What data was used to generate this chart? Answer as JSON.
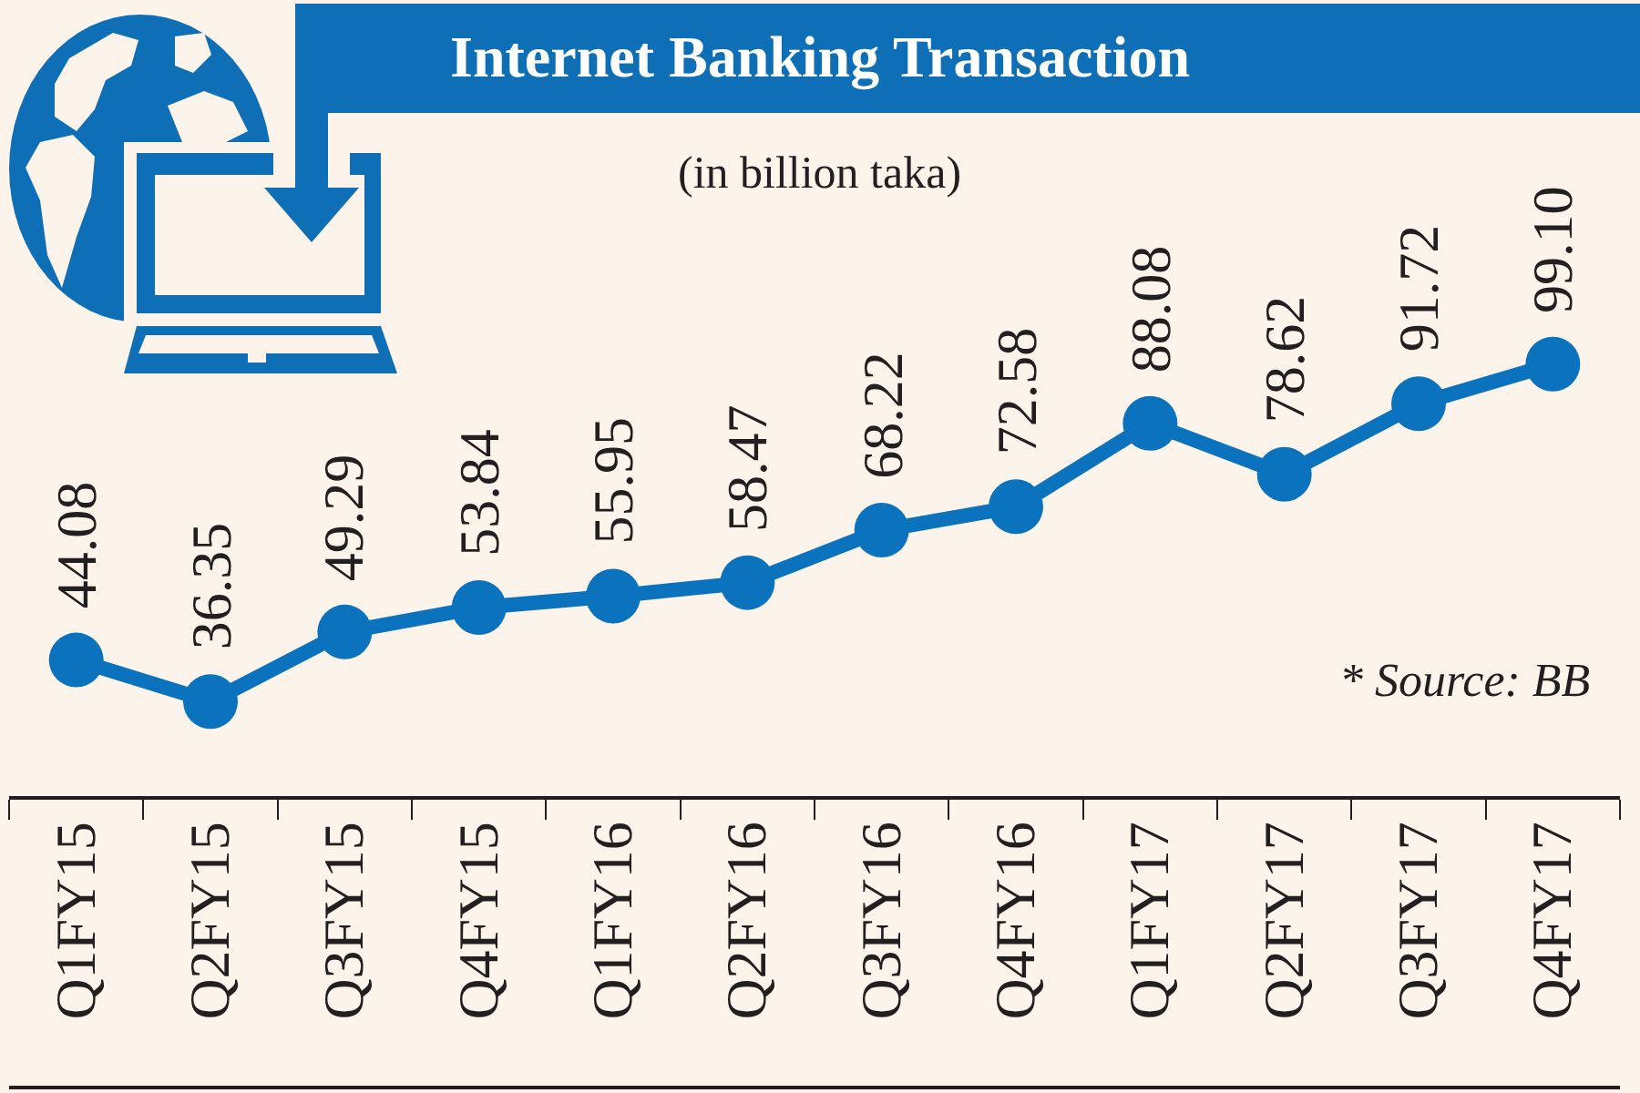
{
  "chart_data": {
    "type": "line",
    "title": "Internet Banking Transaction",
    "subtitle": "(in billion taka)",
    "annotations": [
      "* Source: BB"
    ],
    "categories": [
      "Q1FY15",
      "Q2FY15",
      "Q3FY15",
      "Q4FY15",
      "Q1FY16",
      "Q2FY16",
      "Q3FY16",
      "Q4FY16",
      "Q1FY17",
      "Q2FY17",
      "Q3FY17",
      "Q4FY17"
    ],
    "values": [
      44.08,
      36.35,
      49.29,
      53.84,
      55.95,
      58.47,
      68.22,
      72.58,
      88.08,
      78.62,
      91.72,
      99.1
    ],
    "value_labels": [
      "44.08",
      "36.35",
      "49.29",
      "53.84",
      "55.95",
      "58.47",
      "68.22",
      "72.58",
      "88.08",
      "78.62",
      "91.72",
      "99.10"
    ],
    "color": "#0b73be",
    "marker": "circle",
    "line_style": "solid",
    "tick_labels": "x"
  }
}
